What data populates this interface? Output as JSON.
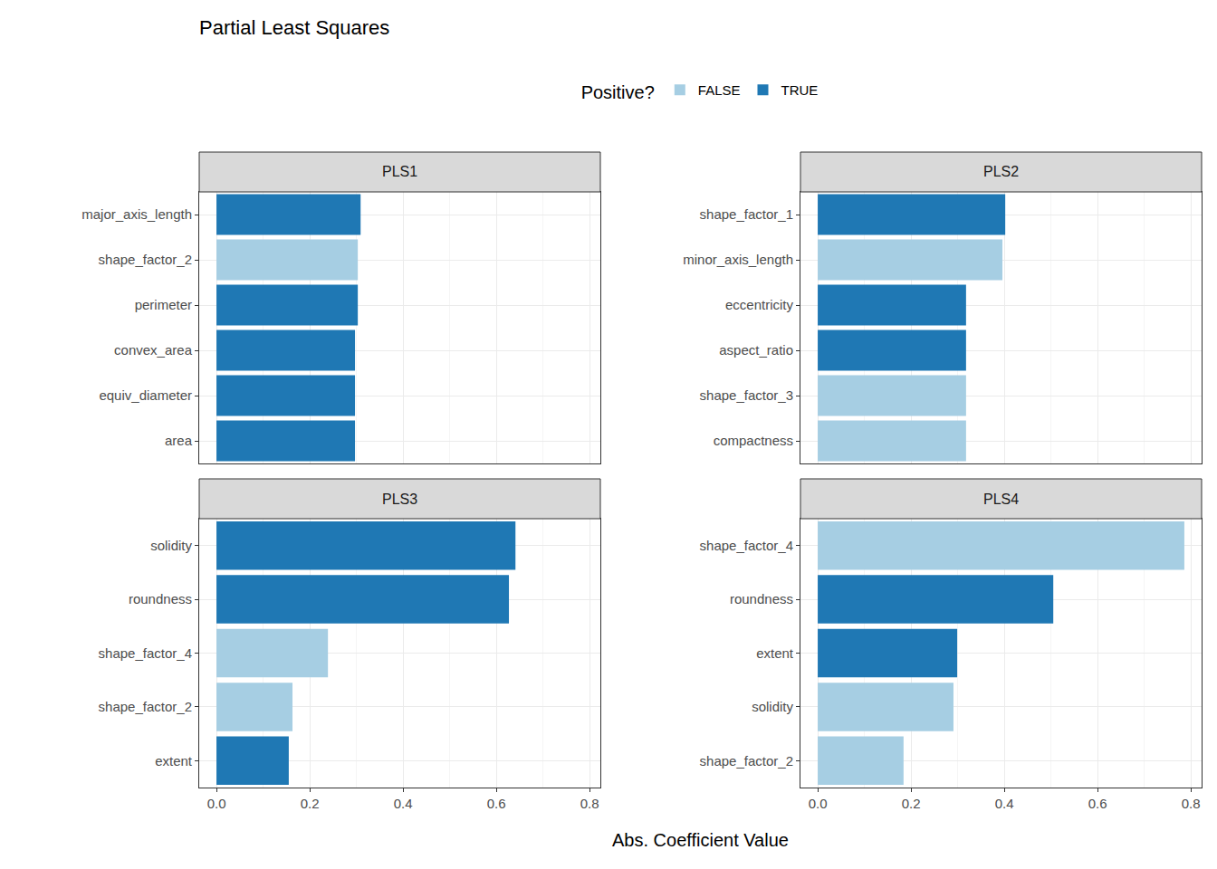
{
  "chart_data": {
    "type": "bar",
    "orientation": "horizontal",
    "title": "Partial Least Squares",
    "x_label": "Abs. Coefficient Value",
    "legend": "top",
    "legend_title": "Positive?",
    "grid": true,
    "xlim": [
      -0.037,
      0.823
    ],
    "xticks": [
      {
        "value": 0,
        "label": "0.0"
      },
      0.2,
      0.4,
      0.6,
      0.8
    ],
    "panels": [
      {
        "title": "PLS1",
        "categories": [
          "major_axis_length",
          "shape_factor_2",
          "perimeter",
          "convex_area",
          "equiv_diameter",
          "area"
        ],
        "series": [
          {
            "name": "FALSE",
            "color": "#a6cee3",
            "values": [
              null,
              0.303,
              null,
              null,
              null,
              null
            ]
          },
          {
            "name": "TRUE",
            "color": "#1f78b4",
            "values": [
              0.309,
              null,
              0.303,
              0.297,
              0.297,
              0.297
            ]
          }
        ]
      },
      {
        "title": "PLS2",
        "categories": [
          "shape_factor_1",
          "minor_axis_length",
          "eccentricity",
          "aspect_ratio",
          "shape_factor_3",
          "compactness"
        ],
        "series": [
          {
            "name": "FALSE",
            "color": "#a6cee3",
            "values": [
              null,
              0.396,
              null,
              null,
              0.318,
              0.318
            ]
          },
          {
            "name": "TRUE",
            "color": "#1f78b4",
            "values": [
              0.402,
              null,
              0.318,
              0.318,
              null,
              null
            ]
          }
        ]
      },
      {
        "title": "PLS3",
        "categories": [
          "solidity",
          "roundness",
          "shape_factor_4",
          "shape_factor_2",
          "extent"
        ],
        "series": [
          {
            "name": "FALSE",
            "color": "#a6cee3",
            "values": [
              null,
              null,
              0.239,
              0.163,
              null
            ]
          },
          {
            "name": "TRUE",
            "color": "#1f78b4",
            "values": [
              0.641,
              0.627,
              null,
              null,
              0.155
            ]
          }
        ]
      },
      {
        "title": "PLS4",
        "categories": [
          "shape_factor_4",
          "roundness",
          "extent",
          "solidity",
          "shape_factor_2"
        ],
        "series": [
          {
            "name": "FALSE",
            "color": "#a6cee3",
            "values": [
              0.786,
              null,
              null,
              0.291,
              0.184
            ]
          },
          {
            "name": "TRUE",
            "color": "#1f78b4",
            "values": [
              null,
              0.505,
              0.299,
              null,
              null
            ]
          }
        ]
      }
    ]
  }
}
